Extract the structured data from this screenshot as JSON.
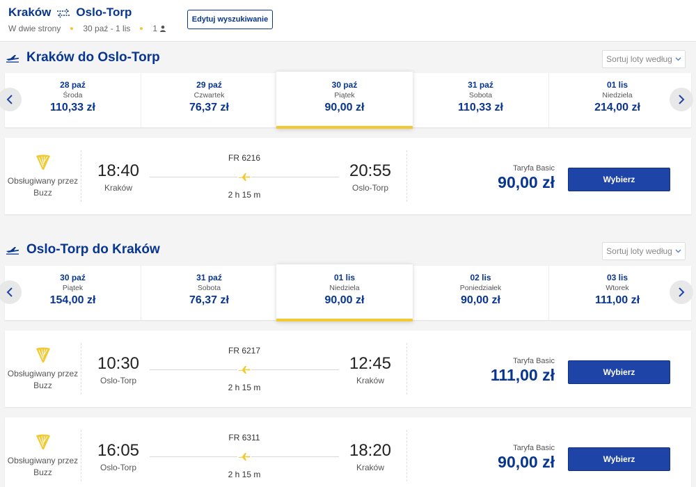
{
  "header": {
    "origin": "Kraków",
    "destination": "Oslo-Torp",
    "trip_type": "W dwie strony",
    "dates": "30 paź - 1 lis",
    "passengers": "1",
    "edit_label": "Edytuj wyszukiwanie"
  },
  "colors": {
    "brand": "#073590",
    "accent": "#f1c933",
    "button": "#1f44a8"
  },
  "outbound": {
    "title": "Kraków do Oslo-Torp",
    "sort_label": "Sortuj loty według",
    "dates": [
      {
        "date": "28 paź",
        "weekday": "Środa",
        "price": "110,33 zł"
      },
      {
        "date": "29 paź",
        "weekday": "Czwartek",
        "price": "76,37 zł"
      },
      {
        "date": "30 paź",
        "weekday": "Piątek",
        "price": "90,00 zł",
        "selected": true
      },
      {
        "date": "31 paź",
        "weekday": "Sobota",
        "price": "110,33 zł"
      },
      {
        "date": "01 lis",
        "weekday": "Niedziela",
        "price": "214,00 zł"
      }
    ],
    "flights": [
      {
        "operator": "Obsługiwany przez Buzz",
        "dep_time": "18:40",
        "dep_city": "Kraków",
        "flight_no": "FR 6216",
        "duration": "2 h 15 m",
        "arr_time": "20:55",
        "arr_city": "Oslo-Torp",
        "fare_label": "Taryfa Basic",
        "price": "90,00 zł",
        "button": "Wybierz"
      }
    ]
  },
  "return": {
    "title": "Oslo-Torp do Kraków",
    "sort_label": "Sortuj loty według",
    "dates": [
      {
        "date": "30 paź",
        "weekday": "Piątek",
        "price": "154,00 zł"
      },
      {
        "date": "31 paź",
        "weekday": "Sobota",
        "price": "76,37 zł"
      },
      {
        "date": "01 lis",
        "weekday": "Niedziela",
        "price": "90,00 zł",
        "selected": true
      },
      {
        "date": "02 lis",
        "weekday": "Poniedziałek",
        "price": "90,00 zł"
      },
      {
        "date": "03 lis",
        "weekday": "Wtorek",
        "price": "111,00 zł"
      }
    ],
    "flights": [
      {
        "operator": "Obsługiwany przez Buzz",
        "dep_time": "10:30",
        "dep_city": "Oslo-Torp",
        "flight_no": "FR 6217",
        "duration": "2 h 15 m",
        "arr_time": "12:45",
        "arr_city": "Kraków",
        "fare_label": "Taryfa Basic",
        "price": "111,00 zł",
        "button": "Wybierz"
      },
      {
        "operator": "Obsługiwany przez Buzz",
        "dep_time": "16:05",
        "dep_city": "Oslo-Torp",
        "flight_no": "FR 6311",
        "duration": "2 h 15 m",
        "arr_time": "18:20",
        "arr_city": "Kraków",
        "fare_label": "Taryfa Basic",
        "price": "90,00 zł",
        "button": "Wybierz"
      }
    ]
  },
  "icons": {
    "swap": "round-trip-arrows-icon",
    "person": "person-icon",
    "plane": "plane-icon",
    "operator": "harp-logo-icon",
    "prev": "chevron-left-icon",
    "next": "chevron-right-icon",
    "sort": "chevron-down-icon"
  }
}
